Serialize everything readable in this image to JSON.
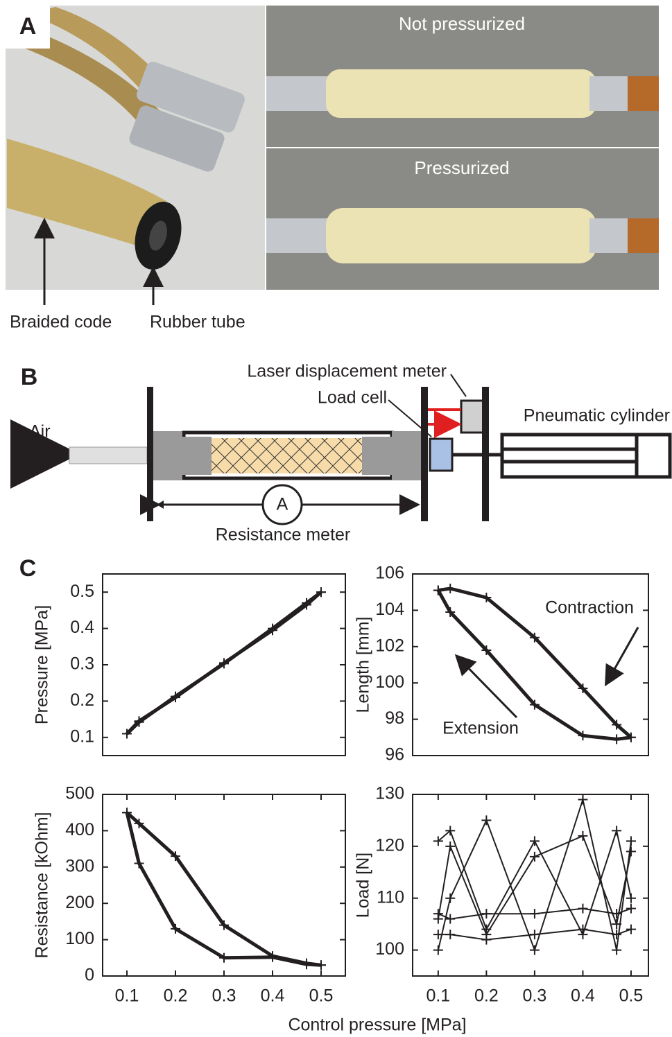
{
  "panels": {
    "a": "A",
    "b": "B",
    "c": "C"
  },
  "photo": {
    "not_pressurized": "Not pressurized",
    "pressurized": "Pressurized",
    "braided_cord": "Braided code",
    "rubber_tube": "Rubber tube"
  },
  "diagram": {
    "air": "Air",
    "laser": "Laser displacement meter",
    "load_cell": "Load cell",
    "cylinder": "Pneumatic cylinder",
    "ammeter": "A",
    "resistance_meter": "Resistance meter"
  },
  "x_axis_label": "Control pressure [MPa]",
  "chart_data": [
    {
      "type": "line",
      "y_label": "Pressure [MPa]",
      "xlim": [
        0.05,
        0.55
      ],
      "ylim": [
        0.05,
        0.55
      ],
      "yticks": [
        0.1,
        0.2,
        0.3,
        0.4,
        0.5
      ],
      "series": [
        {
          "color": "#231f20",
          "x": [
            0.1,
            0.125,
            0.2,
            0.3,
            0.4,
            0.47,
            0.5
          ],
          "values": [
            0.11,
            0.145,
            0.21,
            0.305,
            0.395,
            0.465,
            0.5
          ]
        },
        {
          "color": "#231f20",
          "x": [
            0.5,
            0.47,
            0.4,
            0.3,
            0.2,
            0.125,
            0.1
          ],
          "values": [
            0.5,
            0.47,
            0.4,
            0.303,
            0.213,
            0.142,
            0.11
          ]
        }
      ]
    },
    {
      "type": "line",
      "y_label": "Length [mm]",
      "xlim": [
        0.047,
        0.536
      ],
      "ylim": [
        96,
        106
      ],
      "yticks": [
        96,
        98,
        100,
        102,
        104,
        106
      ],
      "annotations": [
        "Contraction",
        "Extension"
      ],
      "series": [
        {
          "color": "#231f20",
          "x": [
            0.1,
            0.125,
            0.2,
            0.3,
            0.4,
            0.47,
            0.5
          ],
          "values": [
            105.1,
            105.2,
            104.7,
            102.5,
            99.7,
            97.7,
            97.0
          ]
        },
        {
          "color": "#231f20",
          "x": [
            0.5,
            0.47,
            0.4,
            0.3,
            0.2,
            0.125,
            0.1
          ],
          "values": [
            97.0,
            96.9,
            97.1,
            98.8,
            101.8,
            103.9,
            105.1
          ]
        }
      ]
    },
    {
      "type": "line",
      "y_label": "Resistance [kOhm]",
      "xlim": [
        0.05,
        0.55
      ],
      "ylim": [
        0,
        500
      ],
      "xticks": [
        0.1,
        0.2,
        0.3,
        0.4,
        0.5
      ],
      "yticks": [
        0,
        100,
        200,
        300,
        400,
        500
      ],
      "series": [
        {
          "color": "#231f20",
          "x": [
            0.1,
            0.125,
            0.2,
            0.3,
            0.4,
            0.47,
            0.5
          ],
          "values": [
            450,
            420,
            330,
            140,
            55,
            35,
            30
          ]
        },
        {
          "color": "#231f20",
          "x": [
            0.5,
            0.47,
            0.4,
            0.3,
            0.2,
            0.125,
            0.1
          ],
          "values": [
            30,
            32,
            52,
            50,
            130,
            310,
            450
          ]
        }
      ]
    },
    {
      "type": "line",
      "y_label": "Load [N]",
      "xlim": [
        0.047,
        0.536
      ],
      "ylim": [
        95,
        130
      ],
      "xticks": [
        0.1,
        0.2,
        0.3,
        0.4,
        0.5
      ],
      "yticks": [
        100,
        110,
        120,
        130
      ],
      "series": [
        {
          "color": "#231f20",
          "x": [
            0.1,
            0.125,
            0.2,
            0.3,
            0.4,
            0.47,
            0.5
          ],
          "values": [
            107,
            106,
            107,
            107,
            108,
            107,
            108
          ]
        },
        {
          "color": "#231f20",
          "x": [
            0.1,
            0.125,
            0.2,
            0.3,
            0.4,
            0.47,
            0.5
          ],
          "values": [
            103,
            103,
            102,
            103,
            104,
            103,
            104
          ]
        },
        {
          "color": "#231f20",
          "x": [
            0.1,
            0.125,
            0.2,
            0.3,
            0.4,
            0.47,
            0.5
          ],
          "values": [
            121,
            123,
            104,
            121,
            103,
            123,
            110
          ]
        },
        {
          "color": "#231f20",
          "x": [
            0.1,
            0.125,
            0.2,
            0.3,
            0.4,
            0.47,
            0.5
          ],
          "values": [
            100,
            110,
            125,
            100,
            129,
            100,
            121
          ]
        },
        {
          "color": "#231f20",
          "x": [
            0.1,
            0.125,
            0.2,
            0.3,
            0.4,
            0.47,
            0.5
          ],
          "values": [
            106,
            120,
            103,
            118,
            122,
            105,
            119
          ]
        }
      ]
    }
  ]
}
